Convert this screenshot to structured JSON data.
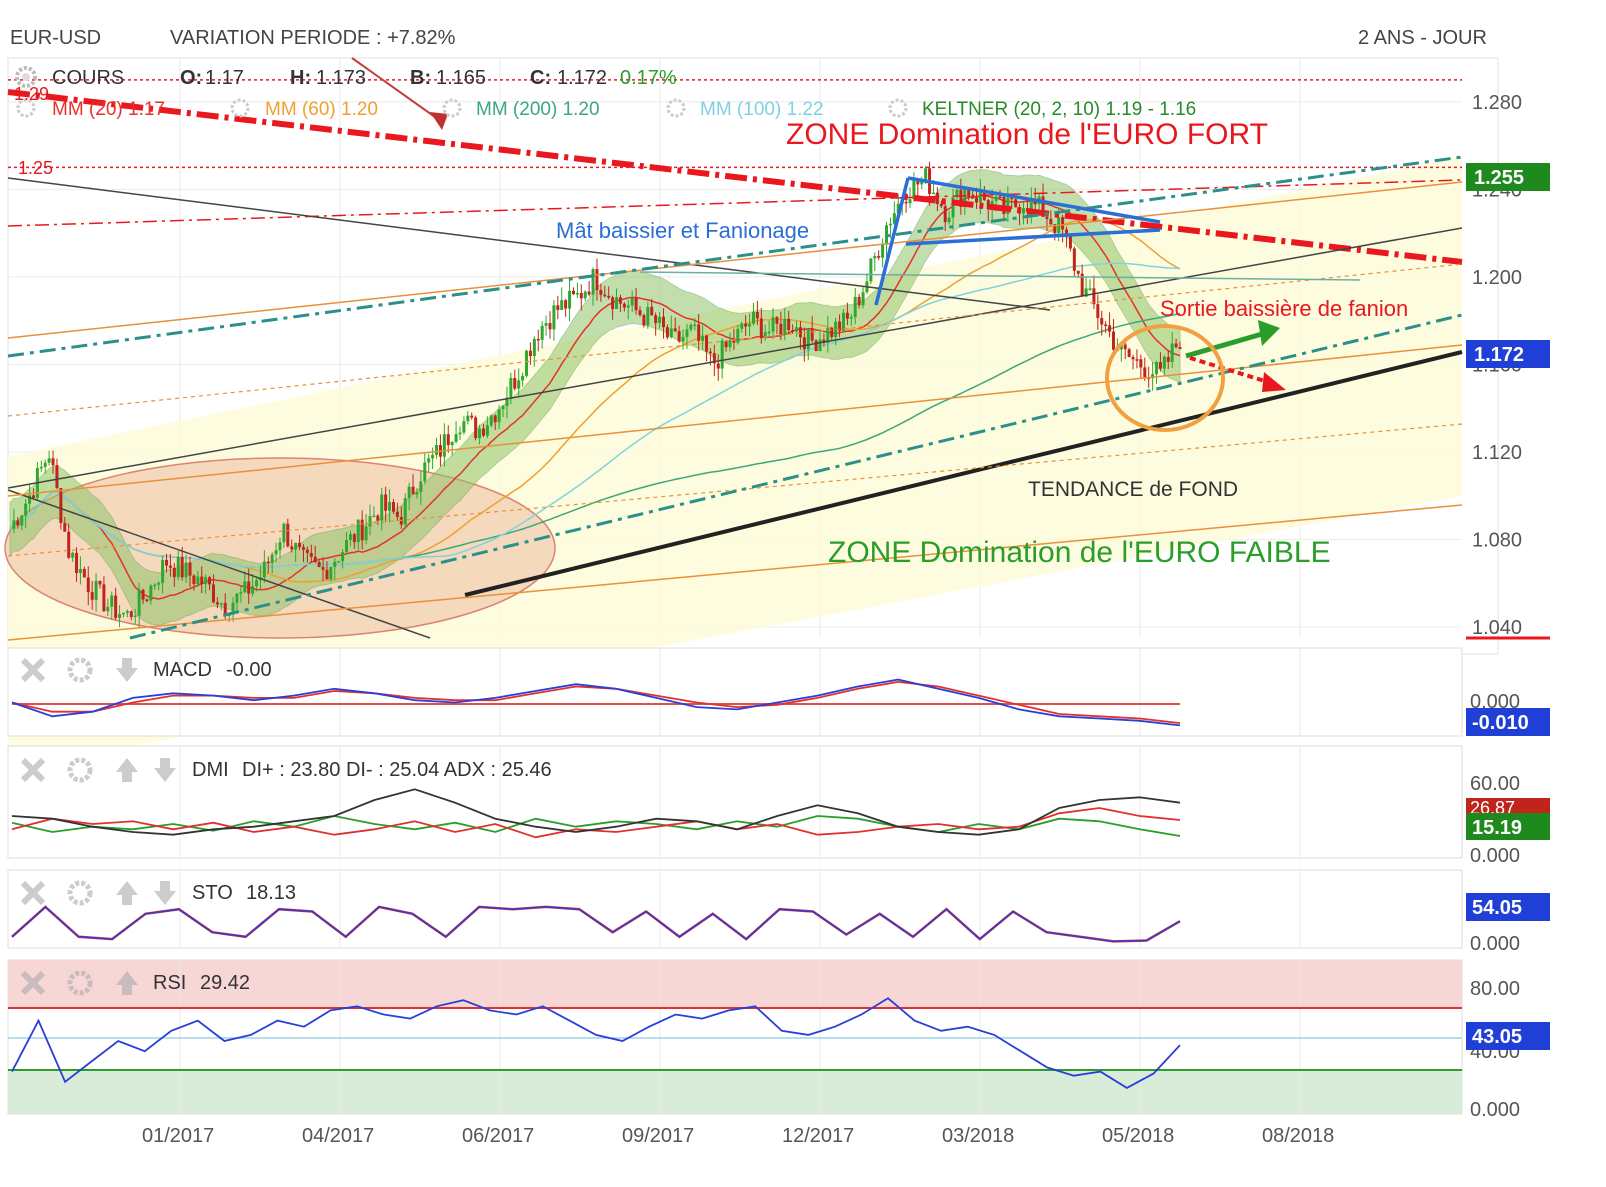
{
  "header": {
    "symbol": "EUR-USD",
    "variation": "VARIATION PERIODE : +7.82%",
    "timeframe": "2 ANS - JOUR"
  },
  "ohlc": {
    "label": "COURS",
    "o_label": "O:",
    "o": "1.17",
    "h_label": "H:",
    "h": "1.173",
    "b_label": "B:",
    "b": "1.165",
    "c_label": "C:",
    "c": "1.172",
    "change": "0.17%"
  },
  "indicators": [
    {
      "text": "MM (20) 1.17",
      "color": "#e8302a"
    },
    {
      "text": "MM (60) 1.20",
      "color": "#f0a030"
    },
    {
      "text": "MM (200) 1.20",
      "color": "#3aa87a"
    },
    {
      "text": "MM (100) 1.22",
      "color": "#7fd3e0"
    },
    {
      "text": "KELTNER (20, 2, 10) 1.19 - 1.16",
      "color": "#2a8a2a"
    }
  ],
  "colors": {
    "up_candle": "#2fa82f",
    "down_candle": "#c0241c",
    "keltner_fill": "#8fc46a",
    "zone_fill": "#fdfbd8",
    "resistance_red": "#e8181e",
    "support_black": "#222222",
    "channel_orange": "#e8903a",
    "channel_teal": "#2b8f8a",
    "pennant_blue": "#2a6fd6",
    "annotation_green": "#2a9d2a",
    "badge_green": "#1e8a1e",
    "badge_blue": "#1f3fd6"
  },
  "chart_data": [
    {
      "type": "candlestick",
      "title": "EUR-USD",
      "x_ticks": [
        "01/2017",
        "04/2017",
        "06/2017",
        "09/2017",
        "12/2017",
        "03/2018",
        "05/2018",
        "08/2018"
      ],
      "y_ticks": [
        "1.280",
        "1.240",
        "1.200",
        "1.160",
        "1.120",
        "1.080",
        "1.040"
      ],
      "y_range": [
        1.035,
        1.3
      ],
      "last_price": "1.172",
      "resistance_label": "1.255",
      "level_labels": [
        "1.29",
        "1.25"
      ],
      "price_path": [
        1.085,
        1.1,
        1.12,
        1.075,
        1.06,
        1.05,
        1.045,
        1.055,
        1.07,
        1.065,
        1.06,
        1.05,
        1.055,
        1.065,
        1.085,
        1.07,
        1.065,
        1.075,
        1.085,
        1.095,
        1.09,
        1.11,
        1.12,
        1.135,
        1.13,
        1.14,
        1.155,
        1.175,
        1.185,
        1.19,
        1.2,
        1.19,
        1.185,
        1.18,
        1.17,
        1.175,
        1.16,
        1.17,
        1.18,
        1.175,
        1.18,
        1.17,
        1.175,
        1.18,
        1.2,
        1.225,
        1.24,
        1.245,
        1.23,
        1.24,
        1.235,
        1.23,
        1.235,
        1.23,
        1.22,
        1.195,
        1.18,
        1.165,
        1.16,
        1.155,
        1.172
      ],
      "annotations": [
        {
          "text": "ZONE Domination de l'EURO FORT",
          "color": "#e8181e"
        },
        {
          "text": "Mât baissier et Fanionage",
          "color": "#2a6fd6"
        },
        {
          "text": "Sortie baissière de fanion",
          "color": "#e8181e"
        },
        {
          "text": "TENDANCE de FOND",
          "color": "#333333"
        },
        {
          "text": "ZONE Domination de l'EURO FAIBLE",
          "color": "#2a9d2a"
        }
      ]
    },
    {
      "type": "line",
      "title": "MACD",
      "value": "-0.00",
      "y_ticks": [
        "0.000"
      ],
      "badge": "-0.010",
      "series": [
        {
          "values": [
            0.0,
            -0.006,
            -0.004,
            0.002,
            0.004,
            0.003,
            0.001,
            0.003,
            0.006,
            0.004,
            0.001,
            0.0,
            0.002,
            0.005,
            0.008,
            0.006,
            0.002,
            -0.002,
            -0.003,
            0.0,
            0.003,
            0.007,
            0.01,
            0.006,
            0.002,
            -0.003,
            -0.006,
            -0.007,
            -0.008,
            -0.01
          ]
        },
        {
          "values": [
            0.0,
            -0.004,
            -0.004,
            0.0,
            0.003,
            0.003,
            0.002,
            0.002,
            0.005,
            0.004,
            0.002,
            0.001,
            0.001,
            0.004,
            0.007,
            0.006,
            0.003,
            0.0,
            -0.002,
            -0.001,
            0.002,
            0.006,
            0.009,
            0.007,
            0.003,
            -0.001,
            -0.005,
            -0.006,
            -0.007,
            -0.009
          ]
        }
      ]
    },
    {
      "type": "line",
      "title": "DMI",
      "value": "DI+ : 23.80 DI- : 25.04 ADX : 25.46",
      "y_ticks": [
        "60.00",
        "0.000"
      ],
      "badges": [
        "26.87",
        "15.19"
      ],
      "series": [
        {
          "name": "DI+",
          "values": [
            25,
            18,
            22,
            20,
            24,
            19,
            26,
            22,
            30,
            24,
            20,
            25,
            18,
            28,
            22,
            26,
            24,
            20,
            26,
            22,
            30,
            28,
            22,
            18,
            24,
            20,
            28,
            26,
            20,
            15
          ]
        },
        {
          "name": "DI-",
          "values": [
            20,
            28,
            24,
            26,
            20,
            25,
            18,
            22,
            16,
            20,
            26,
            18,
            24,
            14,
            20,
            18,
            22,
            26,
            20,
            24,
            16,
            18,
            22,
            24,
            20,
            22,
            32,
            36,
            30,
            27
          ]
        },
        {
          "name": "ADX",
          "values": [
            30,
            28,
            22,
            18,
            16,
            20,
            22,
            26,
            30,
            42,
            50,
            40,
            28,
            22,
            18,
            22,
            28,
            26,
            20,
            30,
            38,
            32,
            22,
            18,
            16,
            20,
            36,
            42,
            44,
            40
          ]
        }
      ]
    },
    {
      "type": "line",
      "title": "STO",
      "value": "18.13",
      "y_ticks": [
        "0.000"
      ],
      "badge": "54.05",
      "series": [
        {
          "values": [
            20,
            85,
            20,
            15,
            70,
            80,
            30,
            20,
            80,
            75,
            20,
            85,
            70,
            20,
            85,
            80,
            85,
            80,
            30,
            75,
            20,
            70,
            15,
            80,
            75,
            25,
            70,
            20,
            80,
            15,
            75,
            30,
            20,
            10,
            12,
            54
          ]
        }
      ]
    },
    {
      "type": "line",
      "title": "RSI",
      "value": "29.42",
      "y_ticks": [
        "80.00",
        "40.00",
        "0.000"
      ],
      "badge": "43.05",
      "series": [
        {
          "values": [
            30,
            55,
            25,
            35,
            45,
            40,
            50,
            55,
            45,
            48,
            55,
            52,
            60,
            62,
            58,
            56,
            62,
            65,
            60,
            58,
            62,
            55,
            48,
            45,
            52,
            58,
            56,
            60,
            62,
            50,
            48,
            52,
            58,
            66,
            55,
            50,
            52,
            48,
            40,
            32,
            28,
            30,
            22,
            29,
            43
          ]
        }
      ]
    }
  ]
}
